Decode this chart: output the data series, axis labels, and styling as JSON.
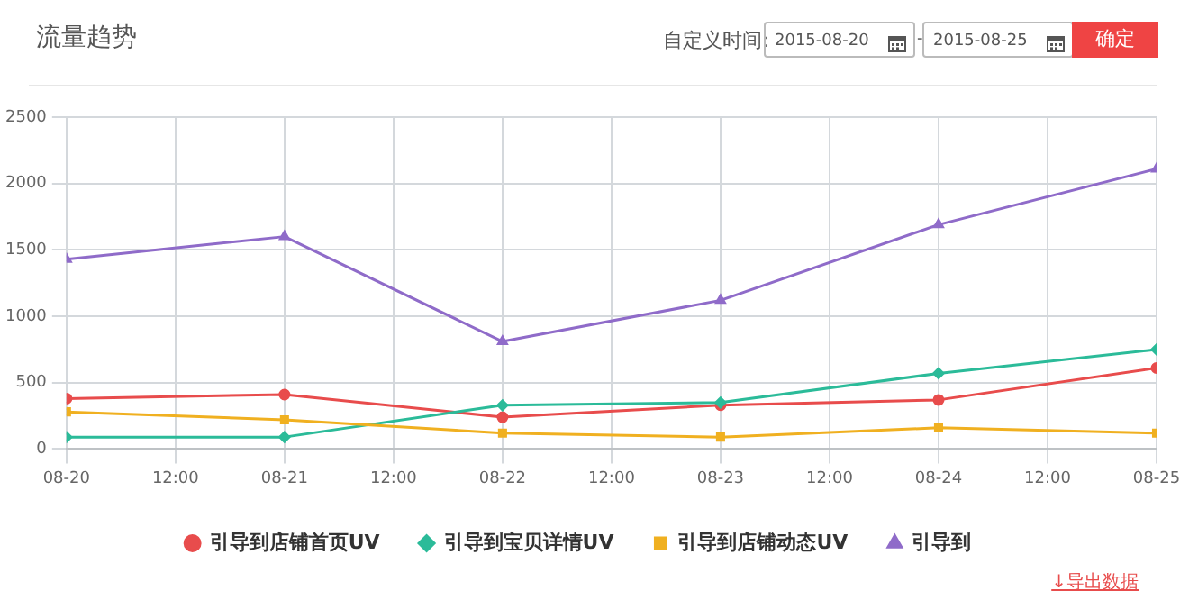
{
  "chart_data": {
    "type": "line",
    "title": "流量趋势",
    "x": [
      "2015-08-20",
      "2015-08-21",
      "2015-08-22",
      "2015-08-23",
      "2015-08-24",
      "2015-08-25"
    ],
    "series": [
      {
        "name": "引导到店铺首页UV",
        "color": "#e84c4c",
        "marker": "circle",
        "values": [
          380,
          410,
          240,
          330,
          370,
          610
        ]
      },
      {
        "name": "引导到宝贝详情UV",
        "color": "#2bbb99",
        "marker": "diamond",
        "values": [
          90,
          90,
          330,
          350,
          570,
          750
        ]
      },
      {
        "name": "引导到店铺动态UV",
        "color": "#f0b020",
        "marker": "square",
        "values": [
          280,
          220,
          120,
          90,
          160,
          120
        ]
      },
      {
        "name": "引导到",
        "color": "#8f6bc9",
        "marker": "triangle",
        "values": [
          1430,
          1600,
          810,
          1120,
          1690,
          2110
        ]
      }
    ],
    "xlim": [
      "2015-08-20",
      "2015-08-25"
    ],
    "xticks": [
      {
        "value": "2015-08-20",
        "label": "08-20"
      },
      {
        "value": "2015-08-20T12:00",
        "label": "12:00"
      },
      {
        "value": "2015-08-21",
        "label": "08-21"
      },
      {
        "value": "2015-08-21T12:00",
        "label": "12:00"
      },
      {
        "value": "2015-08-22",
        "label": "08-22"
      },
      {
        "value": "2015-08-22T12:00",
        "label": "12:00"
      },
      {
        "value": "2015-08-23",
        "label": "08-23"
      },
      {
        "value": "2015-08-23T12:00",
        "label": "12:00"
      },
      {
        "value": "2015-08-24",
        "label": "08-24"
      },
      {
        "value": "2015-08-24T12:00",
        "label": "12:00"
      },
      {
        "value": "2015-08-25",
        "label": "08-25"
      }
    ],
    "ylim": [
      0,
      2500
    ],
    "yticks": [
      0,
      500,
      1000,
      1500,
      2000,
      2500
    ],
    "grid": true,
    "legend": "bottom",
    "line_style": "solid",
    "annotations": [
      "自定义时间:",
      "2015-08-20",
      "-",
      "2015-08-25",
      "确定",
      "↓导出数据"
    ]
  }
}
